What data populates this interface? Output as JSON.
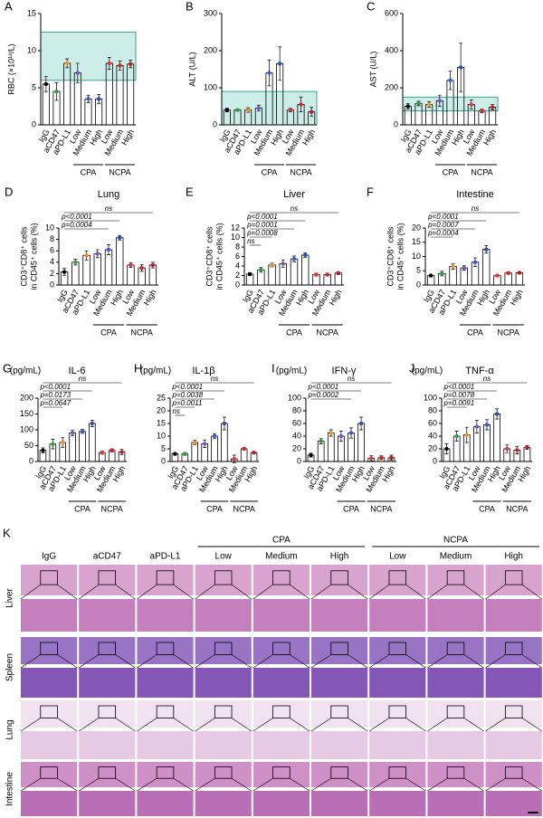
{
  "chart_data": [
    {
      "type": "bar",
      "panel": "A",
      "ylabel": [
        "RBC (×10¹²/L)"
      ],
      "categories": [
        "IgG",
        "aCD47",
        "aPD-L1",
        "Low",
        "Medium",
        "High",
        "Low",
        "Medium",
        "High"
      ],
      "groups": [
        "CPA",
        "NCPA"
      ],
      "values": [
        5.5,
        4.5,
        8.3,
        7,
        3.5,
        3.5,
        8.3,
        8,
        8.2
      ],
      "errors": [
        1,
        1.2,
        0.6,
        1.3,
        0.5,
        0.6,
        0.8,
        0.6,
        0.5
      ],
      "ylim": [
        0,
        15
      ],
      "yticks": [
        0,
        5,
        10,
        15
      ],
      "reference_range": [
        6,
        12.5
      ],
      "annotations": []
    },
    {
      "type": "bar",
      "panel": "B",
      "ylabel": [
        "ALT (U/L)"
      ],
      "categories": [
        "IgG",
        "aCD47",
        "aPD-L1",
        "Low",
        "Medium",
        "High",
        "Low",
        "Medium",
        "High"
      ],
      "groups": [
        "CPA",
        "NCPA"
      ],
      "values": [
        40,
        40,
        40,
        45,
        140,
        165,
        40,
        55,
        35
      ],
      "errors": [
        5,
        3,
        6,
        8,
        35,
        45,
        5,
        20,
        12
      ],
      "ylim": [
        0,
        300
      ],
      "yticks": [
        0,
        100,
        200,
        300
      ],
      "reference_range": [
        0,
        90
      ],
      "annotations": []
    },
    {
      "type": "bar",
      "panel": "C",
      "ylabel": [
        "AST (U/L)"
      ],
      "categories": [
        "IgG",
        "aCD47",
        "aPD-L1",
        "Low",
        "Medium",
        "High",
        "Low",
        "Medium",
        "High"
      ],
      "groups": [
        "CPA",
        "NCPA"
      ],
      "values": [
        100,
        115,
        110,
        130,
        240,
        310,
        110,
        75,
        95
      ],
      "errors": [
        15,
        12,
        15,
        30,
        50,
        130,
        25,
        10,
        15
      ],
      "ylim": [
        0,
        600
      ],
      "yticks": [
        0,
        200,
        400,
        600
      ],
      "reference_range": [
        75,
        150
      ],
      "annotations": []
    },
    {
      "type": "bar",
      "panel": "D",
      "title": "Lung",
      "ylabel": [
        "CD3⁺CD8⁺ cells",
        "in CD45⁺ cells (%)"
      ],
      "categories": [
        "IgG",
        "aCD47",
        "aPD-L1",
        "Low",
        "Medium",
        "High",
        "Low",
        "Medium",
        "High"
      ],
      "groups": [
        "CPA",
        "NCPA"
      ],
      "values": [
        2.3,
        4,
        5.2,
        5.5,
        6.2,
        8.3,
        3.5,
        3,
        3.5
      ],
      "errors": [
        0.6,
        0.5,
        0.8,
        0.7,
        0.9,
        0.4,
        0.4,
        0.6,
        0.5
      ],
      "ylim": [
        0,
        10
      ],
      "yticks": [
        0,
        2,
        4,
        6,
        8,
        10
      ],
      "annotations": [
        "ns",
        "p<0.0001",
        "p=0.0004"
      ]
    },
    {
      "type": "bar",
      "panel": "E",
      "title": "Liver",
      "ylabel": [
        "CD3⁺CD8⁺ cells",
        "in CD45⁺ cells (%)"
      ],
      "categories": [
        "IgG",
        "aCD47",
        "aPD-L1",
        "Low",
        "Medium",
        "High",
        "Low",
        "Medium",
        "High"
      ],
      "groups": [
        "CPA",
        "NCPA"
      ],
      "values": [
        2.3,
        3.2,
        4.2,
        4.5,
        5.5,
        6.3,
        2.2,
        2.2,
        2.5
      ],
      "errors": [
        0.3,
        0.5,
        0.4,
        0.8,
        0.6,
        0.5,
        0.3,
        0.3,
        0.3
      ],
      "ylim": [
        0,
        12
      ],
      "yticks": [
        0,
        2,
        4,
        6,
        8,
        10,
        12
      ],
      "annotations": [
        "ns",
        "p<0.0001",
        "p=0.0001",
        "p=0.0008",
        "ns"
      ]
    },
    {
      "type": "bar",
      "panel": "F",
      "title": "Intestine",
      "ylabel": [
        "CD3⁺CD8⁺ cells",
        "in CD45⁺ cells (%)"
      ],
      "categories": [
        "IgG",
        "aCD47",
        "aPD-L1",
        "Low",
        "Medium",
        "High",
        "Low",
        "Medium",
        "High"
      ],
      "groups": [
        "CPA",
        "NCPA"
      ],
      "values": [
        3.3,
        4,
        6.5,
        6,
        8,
        12.5,
        3.3,
        4.2,
        4.3
      ],
      "errors": [
        0.4,
        0.8,
        0.9,
        0.8,
        1.5,
        1.3,
        0.4,
        0.4,
        0.4
      ],
      "ylim": [
        0,
        20
      ],
      "yticks": [
        0,
        5,
        10,
        15,
        20
      ],
      "annotations": [
        "ns",
        "p<0.0001",
        "p=0.0007",
        "p=0.0004"
      ]
    },
    {
      "type": "bar",
      "panel": "G",
      "title": "IL-6",
      "unit": "(pg/mL)",
      "categories": [
        "IgG",
        "aCD47",
        "aPD-L1",
        "Low",
        "Medium",
        "High",
        "Low",
        "Medium",
        "High"
      ],
      "groups": [
        "CPA",
        "NCPA"
      ],
      "values": [
        35,
        55,
        60,
        90,
        95,
        120,
        28,
        35,
        30
      ],
      "errors": [
        8,
        15,
        15,
        8,
        6,
        10,
        5,
        5,
        8
      ],
      "ylim": [
        0,
        200
      ],
      "yticks": [
        0,
        50,
        100,
        150,
        200
      ],
      "annotations": [
        "ns",
        "p<0.0001",
        "p=0.0173",
        "p=0.0647"
      ]
    },
    {
      "type": "bar",
      "panel": "H",
      "title": "IL-1β",
      "unit": "(pg/mL)",
      "categories": [
        "IgG",
        "aCD47",
        "aPD-L1",
        "Low",
        "Medium",
        "High",
        "Low",
        "Medium",
        "High"
      ],
      "groups": [
        "CPA",
        "NCPA"
      ],
      "values": [
        3,
        3,
        7.5,
        7,
        10,
        15,
        1,
        5,
        3.5
      ],
      "errors": [
        0.5,
        0.6,
        0.8,
        1.5,
        1,
        2.5,
        1.5,
        0.4,
        0.5
      ],
      "ylim": [
        0,
        25
      ],
      "yticks": [
        0,
        5,
        10,
        15,
        20,
        25
      ],
      "annotations": [
        "ns",
        "p<0.0001",
        "p=0.0038",
        "p=0.0011",
        "ns"
      ]
    },
    {
      "type": "bar",
      "panel": "I",
      "title": "IFN-γ",
      "unit": "(pg/mL)",
      "categories": [
        "IgG",
        "aCD47",
        "aPD-L1",
        "Low",
        "Medium",
        "High",
        "Low",
        "Medium",
        "High"
      ],
      "groups": [
        "CPA",
        "NCPA"
      ],
      "values": [
        10,
        32,
        45,
        40,
        45,
        60,
        5,
        6,
        6
      ],
      "errors": [
        3,
        4,
        5,
        8,
        8,
        10,
        4,
        3,
        4
      ],
      "ylim": [
        0,
        100
      ],
      "yticks": [
        0,
        20,
        40,
        60,
        80,
        100
      ],
      "annotations": [
        "ns",
        "p<0.0001",
        "p=0.0002"
      ]
    },
    {
      "type": "bar",
      "panel": "J",
      "title": "TNF-α",
      "unit": "(pg/mL)",
      "categories": [
        "IgG",
        "aCD47",
        "aPD-L1",
        "Low",
        "Medium",
        "High",
        "Low",
        "Medium",
        "High"
      ],
      "groups": [
        "CPA",
        "NCPA"
      ],
      "values": [
        20,
        40,
        42,
        55,
        58,
        75,
        20,
        18,
        22
      ],
      "errors": [
        8,
        8,
        12,
        10,
        8,
        8,
        6,
        6,
        3
      ],
      "ylim": [
        0,
        100
      ],
      "yticks": [
        0,
        20,
        40,
        60,
        80,
        100
      ],
      "annotations": [
        "ns",
        "p<0.0001",
        "p=0.0078",
        "p=0.0091"
      ]
    }
  ],
  "dot_colors": [
    "#000000",
    "#2ea043",
    "#f08c28",
    "#7b52c9",
    "#3b5bd6",
    "#2a4fb0",
    "#e03838",
    "#d0242a",
    "#b81e2a"
  ],
  "reference_color": "#cdeee8",
  "histology": {
    "panel": "K",
    "columns": [
      "IgG",
      "aCD47",
      "aPD-L1",
      "Low",
      "Medium",
      "High",
      "Low",
      "Medium",
      "High"
    ],
    "groups": [
      "CPA",
      "NCPA"
    ],
    "rows": [
      "Liver",
      "Spleen",
      "Lung",
      "Intestine"
    ]
  }
}
